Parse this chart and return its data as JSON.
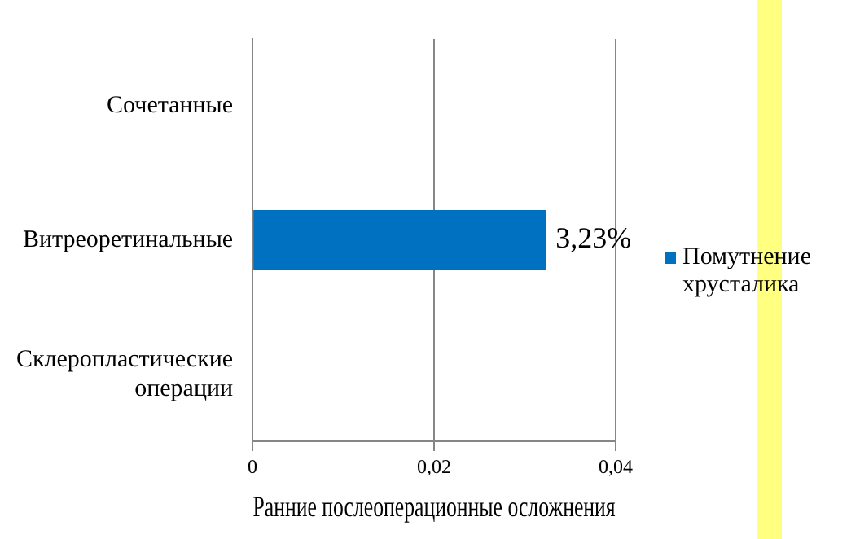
{
  "chart_data": {
    "type": "bar",
    "orientation": "horizontal",
    "xlabel": "Ранние послеоперационные осложнения",
    "categories": [
      "Сочетанные",
      "Витреоретинальные",
      "Склеропластические операции"
    ],
    "series": [
      {
        "name": "Помутнение хрусталика",
        "color": "#0070c0",
        "values": [
          0,
          0.0323,
          0
        ],
        "value_labels": [
          null,
          "3,23%",
          null
        ]
      }
    ],
    "xlim": [
      0,
      0.04
    ],
    "xticks": [
      0,
      {
        "value": 0.02,
        "label": "0,02"
      },
      {
        "value": 0.04,
        "label": "0,04"
      }
    ],
    "grid": "x",
    "legend": "right"
  }
}
